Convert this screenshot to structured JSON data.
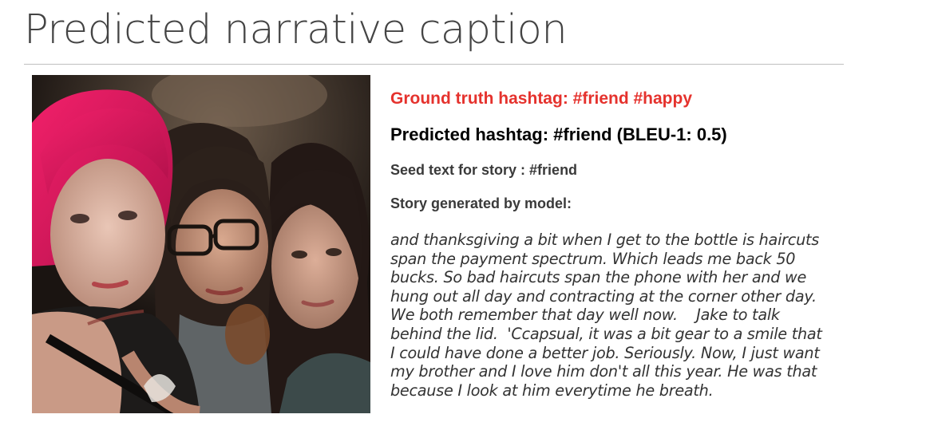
{
  "slide": {
    "title": "Predicted narrative caption"
  },
  "ground_truth": {
    "text": "Ground truth hashtag: #friend #happy",
    "color": "#e5322d"
  },
  "predicted": {
    "text": "Predicted hashtag: #friend (BLEU-1: 0.5)"
  },
  "seed": {
    "text": "Seed text for story : #friend"
  },
  "story": {
    "label": "Story generated by model:",
    "lines": [
      "and thanksgiving a bit when I get to the bottle is haircuts",
      "span the payment spectrum. Which leads me back 50",
      "bucks. So bad haircuts span the phone with her and we",
      "hung out all day and contracting at the corner other day.",
      "We both remember that day well now.    Jake to talk",
      "behind the lid.  'Ccapsual, it was a bit gear to a smile that",
      "I could have done a better job. Seriously. Now, I just want",
      "my brother and I love him don't all this year. He was that",
      "because I look at him everytime he breath."
    ]
  }
}
